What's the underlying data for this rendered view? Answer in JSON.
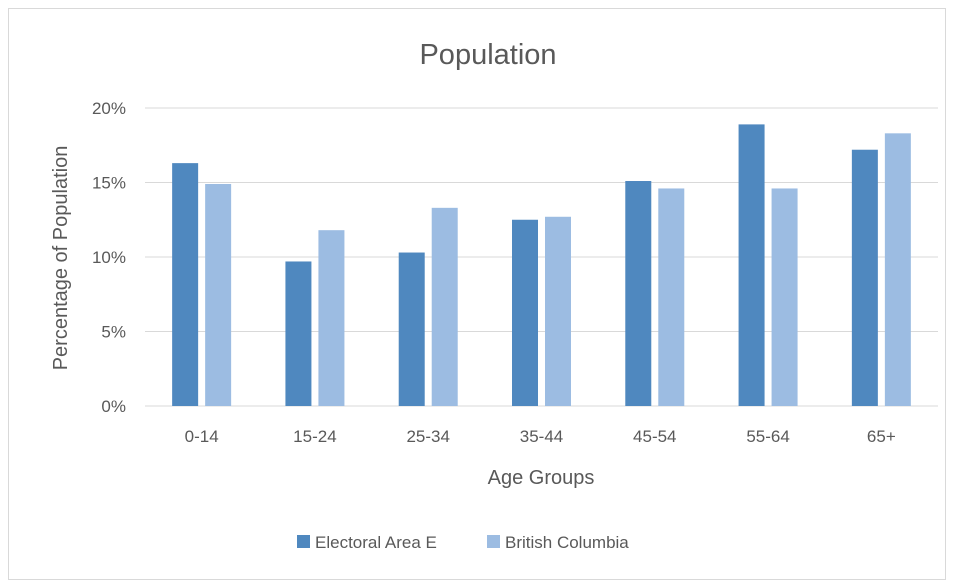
{
  "chart_data": {
    "type": "bar",
    "title": "Population",
    "xlabel": "Age Groups",
    "ylabel": "Percentage of Population",
    "categories": [
      "0-14",
      "15-24",
      "25-34",
      "35-44",
      "45-54",
      "55-64",
      "65+"
    ],
    "series": [
      {
        "name": "Electoral Area E",
        "color": "#4f88bf",
        "values": [
          16.3,
          9.7,
          10.3,
          12.5,
          15.1,
          18.9,
          17.2
        ]
      },
      {
        "name": "British Columbia",
        "color": "#9cbce2",
        "values": [
          14.9,
          11.8,
          13.3,
          12.7,
          14.6,
          14.6,
          18.3
        ]
      }
    ],
    "ylim": [
      0,
      20
    ],
    "yticks": [
      "0%",
      "5%",
      "10%",
      "15%",
      "20%"
    ],
    "grid": true,
    "legend_position": "bottom",
    "gridline_color": "#d9d9d9",
    "text_color": "#595959"
  }
}
